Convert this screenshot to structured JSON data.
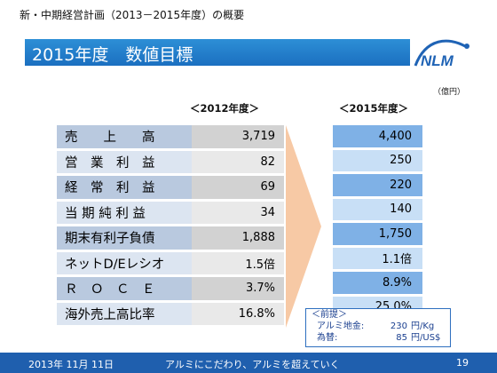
{
  "header": {
    "caption": "新・中期経営計画（2013－2015年度）の概要",
    "title": "2015年度　数値目標",
    "logo_text": "NLM"
  },
  "unit_note": "（億円）",
  "columns": {
    "y2012": "＜2012年度＞",
    "y2015": "＜2015年度＞"
  },
  "rows": [
    {
      "label": "売　　上　　高",
      "v2012": "3,719",
      "v2015": "4,400"
    },
    {
      "label": "営　業　利　益",
      "v2012": "82",
      "v2015": "250"
    },
    {
      "label": "経　常　利　益",
      "v2012": "69",
      "v2015": "220"
    },
    {
      "label": "当 期 純 利 益",
      "v2012": "34",
      "v2015": "140"
    },
    {
      "label": "期末有利子負債",
      "v2012": "1,888",
      "v2015": "1,750"
    },
    {
      "label": "ネットD/Eレシオ",
      "v2012": "1.5倍",
      "v2015": "1.1倍"
    },
    {
      "label": "Ｒ　Ｏ　Ｃ　Ｅ",
      "v2012": "3.7%",
      "v2015": "8.9%"
    },
    {
      "label": "海外売上高比率",
      "v2012": "16.8%",
      "v2015": "25.0%"
    }
  ],
  "premise": {
    "title": "＜前提＞",
    "items": [
      {
        "name": "アルミ地金:",
        "value": "230",
        "unit": "円/Kg"
      },
      {
        "name": "為替:",
        "value": "85",
        "unit": "円/US$"
      }
    ]
  },
  "footer": {
    "date": "2013年 11月 11日",
    "slogan": "アルミにこだわり、アルミを超えていく",
    "page": "19"
  },
  "colors": {
    "title_bar": "#1b6fc0",
    "footer_bar": "#1f5fae",
    "row_dark": "#b9c9df",
    "row_light": "#dce5f1",
    "target_dark": "#7fb1e6",
    "target_light": "#c8dff6",
    "arrow": "#f7c9a5"
  }
}
